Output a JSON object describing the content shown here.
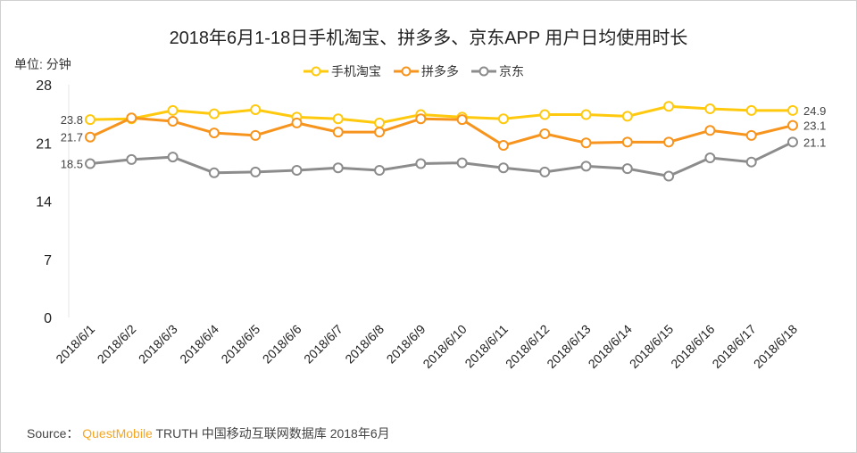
{
  "chart_data": {
    "type": "line",
    "title": "2018年6月1-18日手机淘宝、拼多多、京东APP 用户日均使用时长",
    "ylabel": "单位: 分钟",
    "xlabel": "",
    "ylim": [
      0,
      28
    ],
    "yticks": [
      "0",
      "7",
      "14",
      "21",
      "28"
    ],
    "ytick_values": [
      0,
      7,
      14,
      21,
      28
    ],
    "grid": false,
    "legend_position": "top",
    "categories": [
      "2018/6/1",
      "2018/6/2",
      "2018/6/3",
      "2018/6/4",
      "2018/6/5",
      "2018/6/6",
      "2018/6/7",
      "2018/6/8",
      "2018/6/9",
      "2018/6/10",
      "2018/6/11",
      "2018/6/12",
      "2018/6/13",
      "2018/6/14",
      "2018/6/15",
      "2018/6/16",
      "2018/6/17",
      "2018/6/18"
    ],
    "series": [
      {
        "name": "手机淘宝",
        "color": "#ffc90e",
        "values": [
          23.8,
          23.9,
          24.9,
          24.5,
          25.0,
          24.1,
          23.9,
          23.4,
          24.4,
          24.1,
          23.9,
          24.4,
          24.4,
          24.2,
          25.4,
          25.1,
          24.9,
          24.9
        ],
        "first_label": "23.8",
        "last_label": "24.9"
      },
      {
        "name": "拼多多",
        "color": "#f7941d",
        "values": [
          21.7,
          24.0,
          23.6,
          22.2,
          21.9,
          23.4,
          22.3,
          22.3,
          23.9,
          23.8,
          20.7,
          22.1,
          21.0,
          21.1,
          21.1,
          22.5,
          21.9,
          23.1
        ],
        "first_label": "21.7",
        "last_label": "23.1"
      },
      {
        "name": "京东",
        "color": "#8c8c8c",
        "values": [
          18.5,
          19.0,
          19.3,
          17.4,
          17.5,
          17.7,
          18.0,
          17.7,
          18.5,
          18.6,
          18.0,
          17.5,
          18.2,
          17.9,
          17.0,
          19.2,
          18.7,
          21.1
        ],
        "first_label": "18.5",
        "last_label": "21.1"
      }
    ]
  },
  "source": {
    "prefix": "Source：",
    "brand": "QuestMobile",
    "text": "TRUTH 中国移动互联网数据库 2018年6月"
  }
}
